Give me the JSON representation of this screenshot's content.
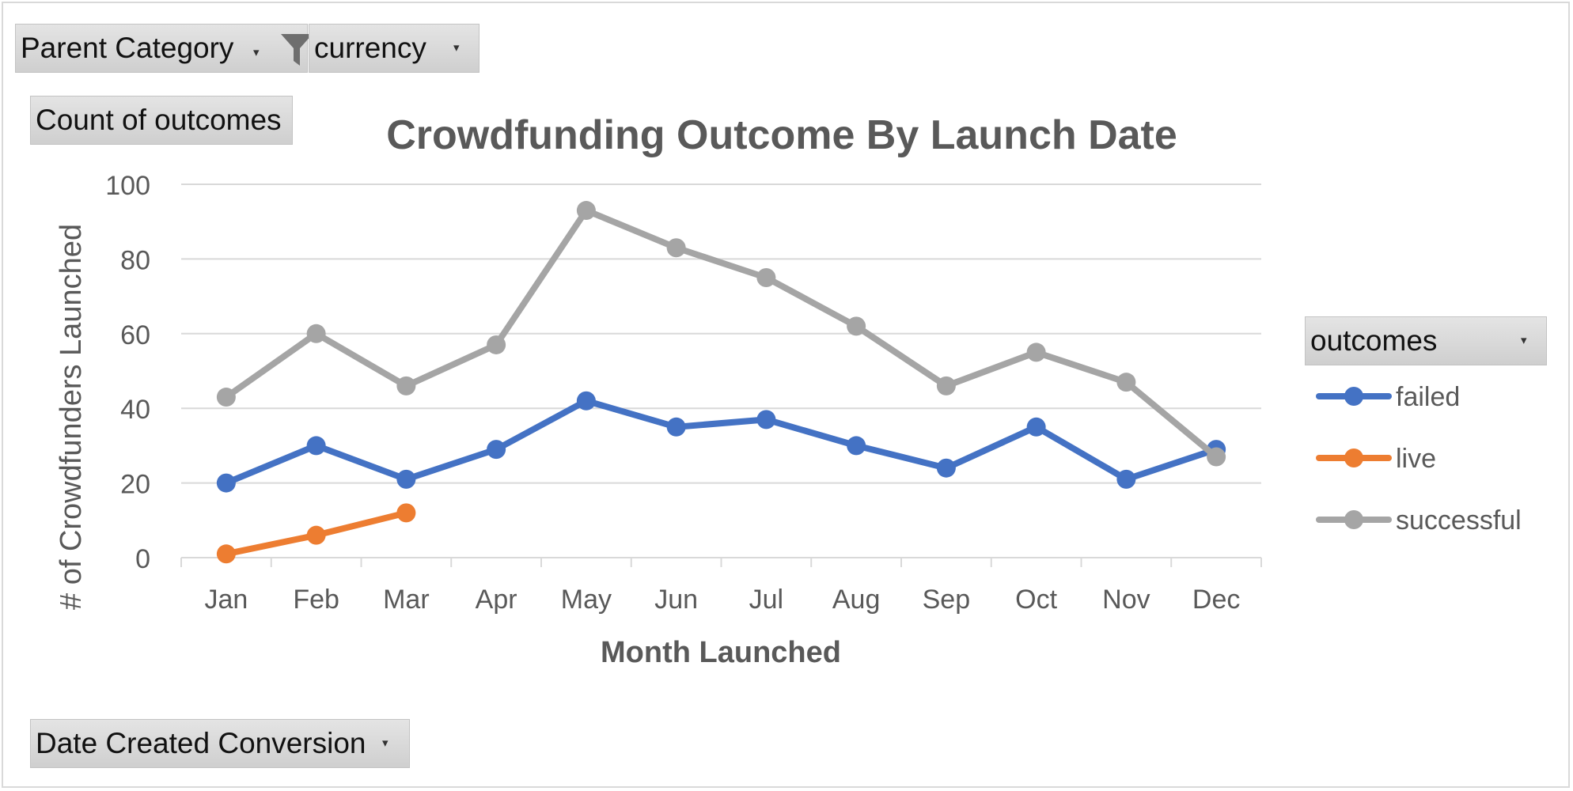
{
  "filters": {
    "parent_category": "Parent Category",
    "currency": "currency",
    "values_field": "Count of outcomes",
    "axis_field": "Date Created Conversion",
    "legend_field": "outcomes"
  },
  "colors": {
    "failed": "#4472C4",
    "live": "#ED7D31",
    "successful": "#A5A5A5",
    "grid": "#d9d9d9",
    "text": "#595959"
  },
  "chart_data": {
    "type": "line",
    "title": "Crowdfunding Outcome By Launch Date",
    "xlabel": "Month Launched",
    "ylabel": "# of Crowdfunders Launched",
    "categories": [
      "Jan",
      "Feb",
      "Mar",
      "Apr",
      "May",
      "Jun",
      "Jul",
      "Aug",
      "Sep",
      "Oct",
      "Nov",
      "Dec"
    ],
    "ylim": [
      0,
      100
    ],
    "yticks": [
      0,
      20,
      40,
      60,
      80,
      100
    ],
    "grid": true,
    "legend_position": "right",
    "series": [
      {
        "name": "failed",
        "values": [
          20,
          30,
          21,
          29,
          42,
          35,
          37,
          30,
          24,
          35,
          21,
          29
        ]
      },
      {
        "name": "live",
        "values": [
          1,
          6,
          12,
          null,
          null,
          null,
          null,
          null,
          null,
          null,
          null,
          null
        ]
      },
      {
        "name": "successful",
        "values": [
          43,
          60,
          46,
          57,
          93,
          83,
          75,
          62,
          46,
          55,
          47,
          27
        ]
      }
    ]
  }
}
